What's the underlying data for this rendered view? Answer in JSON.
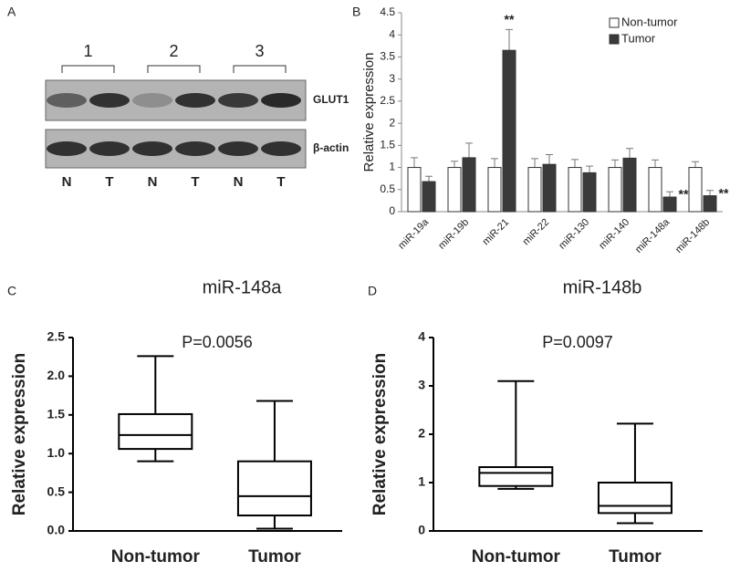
{
  "blot": {
    "panel": "A",
    "groups": [
      "1",
      "2",
      "3"
    ],
    "rows": [
      "GLUT1",
      "β-actin"
    ],
    "lanes": [
      "N",
      "T",
      "N",
      "T",
      "N",
      "T"
    ]
  },
  "chart_data": [
    {
      "type": "bar",
      "panel": "B",
      "y_label": "Relative expression",
      "categories": [
        "miR-19a",
        "miR-19b",
        "miR-21",
        "miR-22",
        "miR-130",
        "miR-140",
        "miR-148a",
        "miR-148b"
      ],
      "series": [
        {
          "name": "Non-tumor",
          "color": "#ffffff",
          "values": [
            1,
            1,
            1,
            1,
            1,
            1,
            1,
            1
          ],
          "errors": [
            0.22,
            0.14,
            0.2,
            0.2,
            0.18,
            0.17,
            0.17,
            0.13
          ]
        },
        {
          "name": "Tumor",
          "color": "#3a3a3a",
          "values": [
            0.68,
            1.22,
            3.65,
            1.07,
            0.88,
            1.21,
            0.33,
            0.36
          ],
          "errors": [
            0.12,
            0.33,
            0.47,
            0.22,
            0.15,
            0.22,
            0.12,
            0.12
          ],
          "significance_labels": [
            null,
            null,
            "**",
            null,
            null,
            null,
            "**",
            "**"
          ]
        }
      ],
      "ylim": [
        0,
        4.5
      ],
      "yticks": [
        0,
        0.5,
        1,
        1.5,
        2,
        2.5,
        3,
        3.5,
        4,
        4.5
      ],
      "legend": "top-right"
    },
    {
      "type": "box",
      "panel": "C",
      "title": "miR-148a",
      "annotation": "P=0.0056",
      "y_label": "Relative expression",
      "categories": [
        "Non-tumor",
        "Tumor"
      ],
      "boxes": [
        {
          "min": 0.9,
          "q1": 1.06,
          "median": 1.24,
          "q3": 1.51,
          "max": 2.26
        },
        {
          "min": 0.03,
          "q1": 0.2,
          "median": 0.45,
          "q3": 0.9,
          "max": 1.68
        }
      ],
      "ylim": [
        0,
        2.5
      ],
      "yticks": [
        {
          "value": 0,
          "label": "0.0"
        },
        {
          "value": 0.5,
          "label": "0.5"
        },
        {
          "value": 1,
          "label": "1.0"
        },
        {
          "value": 1.5,
          "label": "1.5"
        },
        {
          "value": 2,
          "label": "2.0"
        },
        {
          "value": 2.5,
          "label": "2.5"
        }
      ]
    },
    {
      "type": "box",
      "panel": "D",
      "title": "miR-148b",
      "annotation": "P=0.0097",
      "y_label": "Relative expression",
      "categories": [
        "Non-tumor",
        "Tumor"
      ],
      "boxes": [
        {
          "min": 0.87,
          "q1": 0.93,
          "median": 1.2,
          "q3": 1.32,
          "max": 3.1
        },
        {
          "min": 0.16,
          "q1": 0.37,
          "median": 0.52,
          "q3": 1.0,
          "max": 2.22
        }
      ],
      "ylim": [
        0,
        4
      ],
      "yticks": [
        0,
        1,
        2,
        3,
        4
      ]
    }
  ]
}
